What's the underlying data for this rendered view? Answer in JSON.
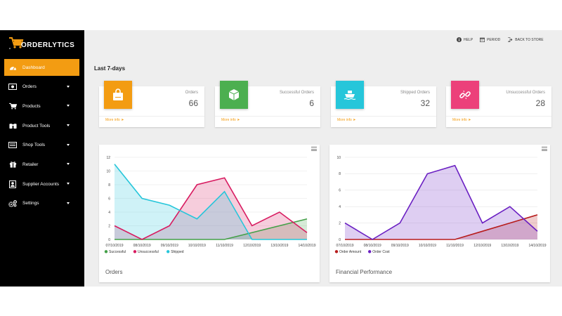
{
  "brand": {
    "name": "ORDERLYTICS"
  },
  "topbar": {
    "help": "HELP",
    "period": "PERIOD",
    "back": "BACK TO STORE"
  },
  "sidebar": {
    "items": [
      {
        "label": "Dashboard",
        "icon": "dashboard-icon",
        "active": true,
        "caret": false
      },
      {
        "label": "Orders",
        "icon": "money-icon",
        "active": false,
        "caret": true
      },
      {
        "label": "Products",
        "icon": "cart-icon",
        "active": false,
        "caret": true
      },
      {
        "label": "Product Tools",
        "icon": "binoculars-icon",
        "active": false,
        "caret": true
      },
      {
        "label": "Shop Tools",
        "icon": "shop-icon",
        "active": false,
        "caret": true
      },
      {
        "label": "Retailer",
        "icon": "gift-icon",
        "active": false,
        "caret": true
      },
      {
        "label": "Supplier Accounts",
        "icon": "contact-icon",
        "active": false,
        "caret": true
      },
      {
        "label": "Settings",
        "icon": "cogs-icon",
        "active": false,
        "caret": true
      }
    ]
  },
  "main": {
    "section_title": "Last 7-days"
  },
  "stats": [
    {
      "label": "Orders",
      "value": "66",
      "more": "More info",
      "color": "#f39c12",
      "icon": "shopping-bag-icon"
    },
    {
      "label": "Successful Orders",
      "value": "6",
      "more": "More info",
      "color": "#4caf50",
      "icon": "box-icon"
    },
    {
      "label": "Shipped Orders",
      "value": "32",
      "more": "More info",
      "color": "#26c6da",
      "icon": "ship-icon"
    },
    {
      "label": "Unsuccessful Orders",
      "value": "28",
      "more": "More info",
      "color": "#ec407a",
      "icon": "broken-link-icon"
    }
  ],
  "chart_data": [
    {
      "type": "area",
      "title": "Orders",
      "categories": [
        "07/10/2019",
        "08/10/2019",
        "09/10/2019",
        "10/10/2019",
        "11/10/2019",
        "12/10/2019",
        "13/10/2019",
        "14/10/2019"
      ],
      "ylim": [
        0,
        12
      ],
      "yticks": [
        0,
        2,
        4,
        6,
        8,
        10,
        12
      ],
      "grid": true,
      "legend": "bottom-left",
      "series": [
        {
          "name": "Successful",
          "color": "#43a047",
          "values": [
            0,
            0,
            0,
            0,
            0,
            1,
            2,
            3
          ]
        },
        {
          "name": "Unsuccessful",
          "color": "#d81b60",
          "values": [
            2,
            0,
            2,
            8,
            9,
            2,
            4,
            1
          ]
        },
        {
          "name": "Shipped",
          "color": "#26c6da",
          "values": [
            11,
            6,
            5,
            3,
            7,
            0,
            0,
            0
          ]
        }
      ]
    },
    {
      "type": "area",
      "title": "Financial Performance",
      "categories": [
        "07/10/2019",
        "08/10/2019",
        "09/10/2019",
        "10/10/2019",
        "11/10/2019",
        "12/10/2019",
        "13/10/2019",
        "14/10/2019"
      ],
      "ylim": [
        0,
        10
      ],
      "yticks": [
        0,
        2,
        4,
        6,
        8,
        10
      ],
      "grid": true,
      "legend": "bottom-left",
      "series": [
        {
          "name": "Order Amount",
          "color": "#b71c1c",
          "values": [
            0,
            0,
            0,
            0,
            0,
            1,
            2,
            3
          ]
        },
        {
          "name": "Order Cost",
          "color": "#6a1fc2",
          "values": [
            2,
            0,
            2,
            8,
            9,
            2,
            4,
            1
          ]
        }
      ]
    }
  ]
}
